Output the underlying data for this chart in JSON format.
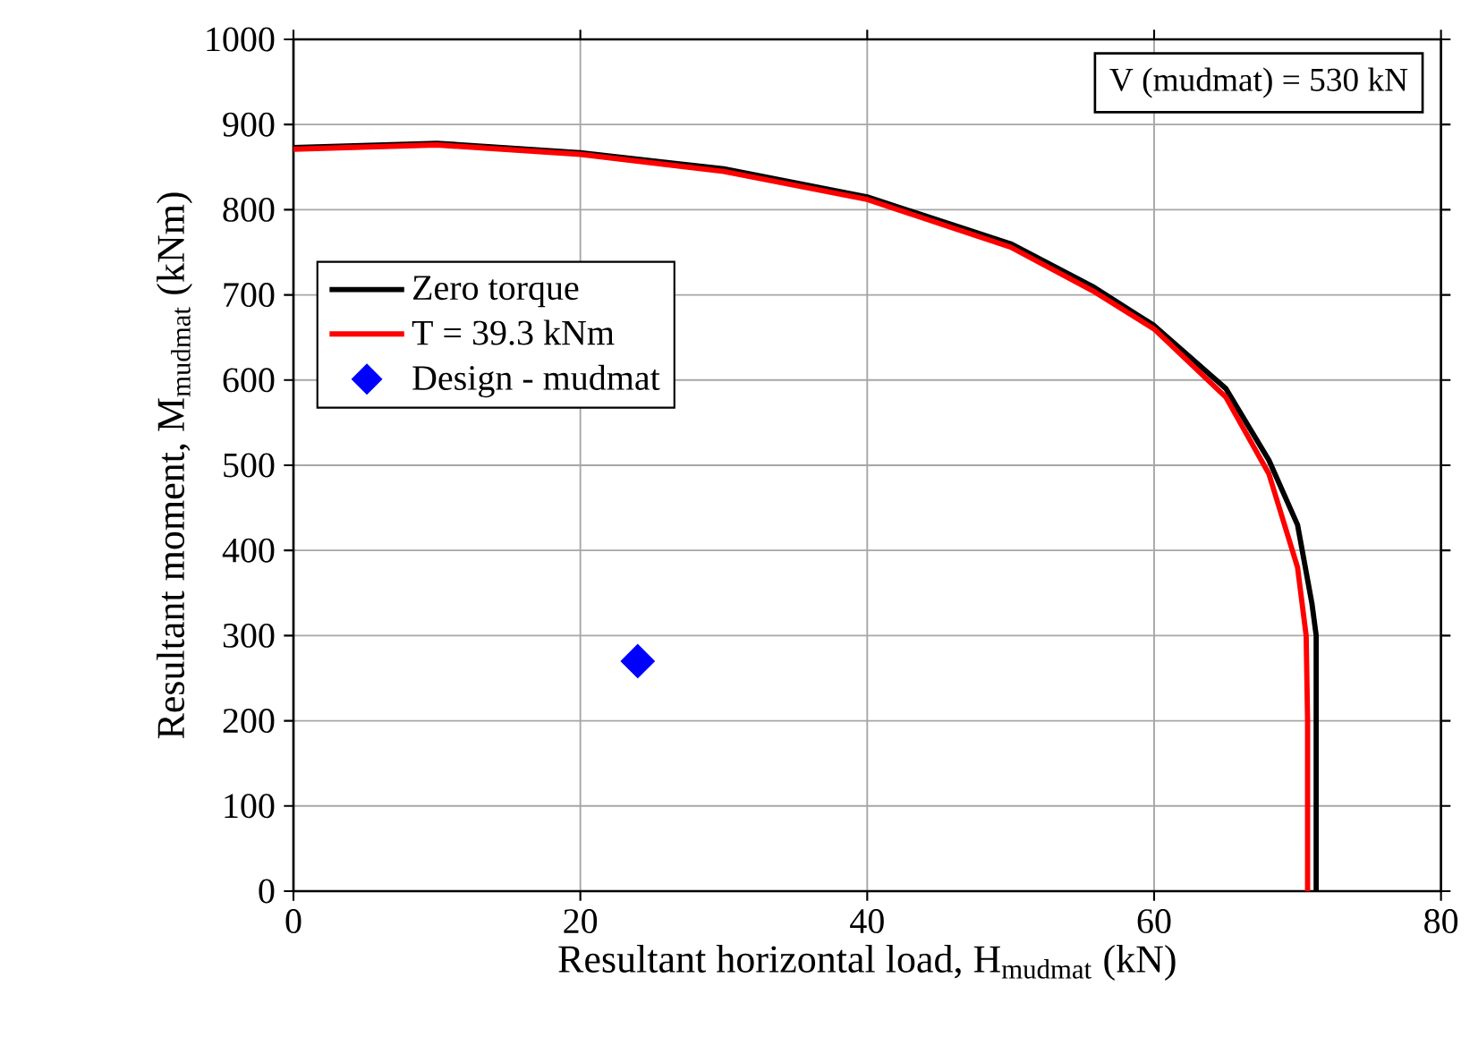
{
  "chart_data": {
    "type": "line",
    "xlabel": "Resultant horizontal load, H$_{mudmat}$ (kN)",
    "ylabel": "Resultant moment, M$_{mudmat}$ (kNm)",
    "xlim": [
      0,
      80
    ],
    "ylim": [
      0,
      1000
    ],
    "xticks": [
      0,
      20,
      40,
      60,
      80
    ],
    "yticks": [
      0,
      100,
      200,
      300,
      400,
      500,
      600,
      700,
      800,
      900,
      1000
    ],
    "grid": true,
    "legend": "top left",
    "annotations": [
      "V (mudmat) = 530 kN"
    ],
    "series": [
      {
        "name": "Zero torque",
        "color": "#000000",
        "marker": "none",
        "x": [
          0,
          10,
          20,
          30,
          40,
          50,
          55.7,
          60,
          65,
          68,
          70,
          71,
          71.3,
          71.3
        ],
        "values": [
          873,
          878,
          867,
          848,
          815,
          760,
          710,
          664,
          590,
          506,
          430,
          338,
          300,
          0
        ]
      },
      {
        "name": "T = 39.3 kNm",
        "color": "#ff0000",
        "marker": "none",
        "x": [
          0,
          10,
          20,
          30,
          40,
          50,
          55.7,
          60,
          65,
          68,
          70,
          70.6,
          70.7,
          70.7
        ],
        "values": [
          871,
          876,
          865,
          845,
          812,
          756,
          705,
          660,
          580,
          490,
          380,
          300,
          200,
          0
        ]
      },
      {
        "name": "Design - mudmat",
        "type": "scatter",
        "color": "#0000ff",
        "marker": "diamond",
        "x": [
          24
        ],
        "values": [
          270
        ]
      }
    ]
  }
}
